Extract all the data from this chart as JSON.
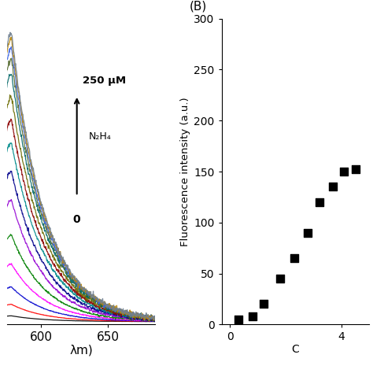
{
  "panel_A": {
    "wavelength_start": 560,
    "wavelength_end": 685,
    "num_curves": 15,
    "colors": [
      "#000000",
      "#ff0000",
      "#0000cd",
      "#ff00ff",
      "#008000",
      "#9400d3",
      "#00008b",
      "#008b8b",
      "#8b0000",
      "#6b6b00",
      "#006666",
      "#556b2f",
      "#4169e1",
      "#b8860b",
      "#708090"
    ],
    "peak_intensities": [
      0.02,
      0.06,
      0.12,
      0.2,
      0.3,
      0.42,
      0.52,
      0.62,
      0.7,
      0.78,
      0.86,
      0.91,
      0.95,
      0.98,
      1.0
    ],
    "peak_wavelength": 578,
    "decay_sigma": 22,
    "decay_exp": 25,
    "annotation_text_top": "250 μM",
    "annotation_text_mid": "N₂H₄",
    "annotation_text_bot": "0",
    "xlabel": "λm)",
    "xticks": [
      600,
      650
    ],
    "xlim": [
      575,
      685
    ],
    "ylim": [
      -0.01,
      1.05
    ]
  },
  "panel_B": {
    "label": "(B)",
    "scatter_x": [
      0.3,
      0.8,
      1.2,
      1.8,
      2.3,
      2.8,
      3.2,
      3.7,
      4.1,
      4.5
    ],
    "scatter_y": [
      5,
      8,
      20,
      45,
      65,
      90,
      120,
      135,
      150,
      152
    ],
    "ylabel": "Fluorescence intensity (a.u.)",
    "xlabel_partial": "C",
    "ylim": [
      0,
      300
    ],
    "yticks": [
      0,
      50,
      100,
      150,
      200,
      250,
      300
    ],
    "xlim": [
      -0.3,
      5.0
    ],
    "xticks": [
      0,
      4
    ]
  },
  "background_color": "#ffffff"
}
